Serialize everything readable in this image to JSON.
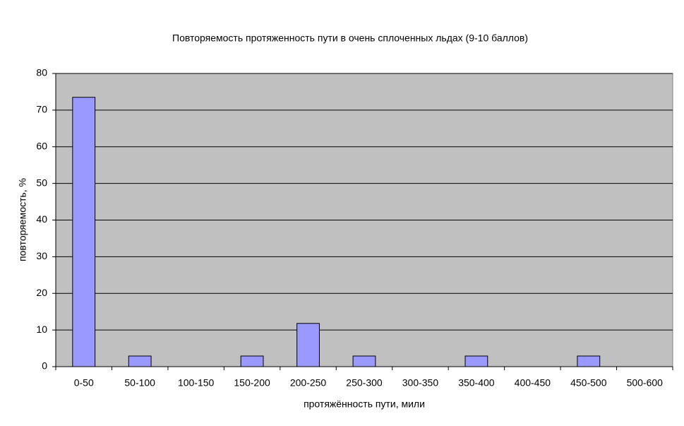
{
  "chart_data": {
    "type": "bar",
    "title": "Повторяемость протяженность пути в очень сплоченных льдах (9-10 баллов)",
    "x_label": "протяжённость пути, мили",
    "y_label": "повторяемость, %",
    "categories": [
      "0-50",
      "50-100",
      "100-150",
      "150-200",
      "200-250",
      "250-300",
      "300-350",
      "350-400",
      "400-450",
      "450-500",
      "500-600"
    ],
    "values": [
      73.5,
      2.9,
      0,
      2.9,
      11.8,
      2.9,
      0,
      2.9,
      0,
      2.9,
      0
    ],
    "color": "#9999ff",
    "background": "#c0c0c0",
    "ylim": [
      0,
      80
    ],
    "yticks": [
      0,
      10,
      20,
      30,
      40,
      50,
      60,
      70,
      80
    ],
    "grid": true
  }
}
